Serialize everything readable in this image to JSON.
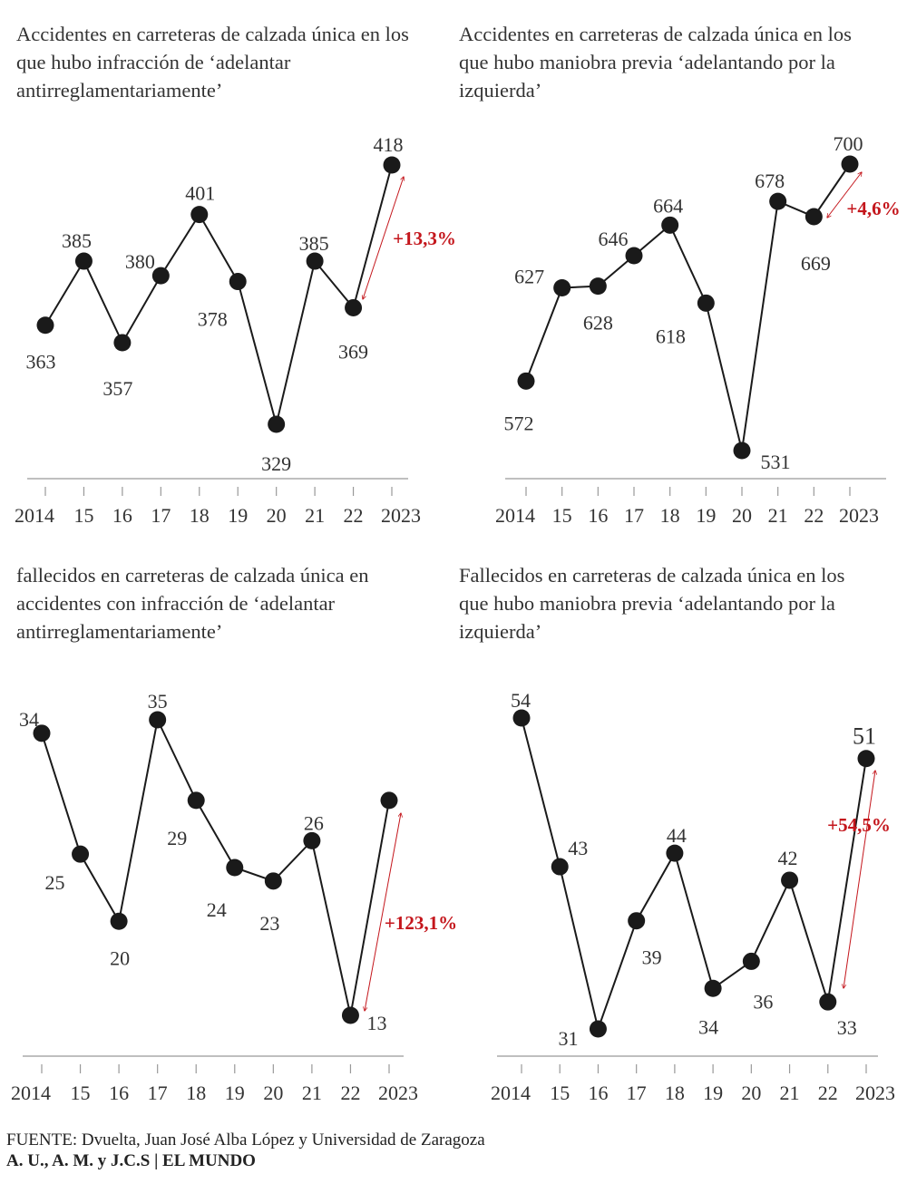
{
  "chart_data": [
    {
      "type": "line",
      "title": "Accidentes en carreteras de calzada única en los que hubo infracción de ‘adelantar antirreglamentariamente’",
      "categories": [
        "2014",
        "15",
        "16",
        "17",
        "18",
        "19",
        "20",
        "21",
        "22",
        "2023"
      ],
      "values": [
        363,
        385,
        357,
        380,
        401,
        378,
        329,
        385,
        369,
        418
      ],
      "labels": [
        "363",
        "385",
        "357",
        "380",
        "401",
        "378",
        "329",
        "385",
        "369",
        "418"
      ],
      "annotation": "+13,3%",
      "ylim": [
        329,
        418
      ]
    },
    {
      "type": "line",
      "title": "Accidentes en carreteras de calzada única en los que hubo maniobra previa ‘adelantando por la izquierda’",
      "categories": [
        "2014",
        "15",
        "16",
        "17",
        "18",
        "19",
        "20",
        "21",
        "22",
        "2023"
      ],
      "values": [
        572,
        627,
        628,
        646,
        664,
        618,
        531,
        678,
        669,
        700
      ],
      "labels": [
        "572",
        "627",
        "628",
        "646",
        "664",
        "618",
        "531",
        "678",
        "669",
        "700"
      ],
      "annotation": "+4,6%",
      "ylim": [
        531,
        700
      ]
    },
    {
      "type": "line",
      "title": "fallecidos en carreteras de calzada única en accidentes con infracción de ‘adelantar antirreglamentariamente’",
      "categories": [
        "2014",
        "15",
        "16",
        "17",
        "18",
        "19",
        "20",
        "21",
        "22",
        "2023"
      ],
      "values": [
        34,
        25,
        20,
        35,
        29,
        24,
        23,
        26,
        13,
        29
      ],
      "labels": [
        "34",
        "25",
        "20",
        "35",
        "29",
        "24",
        "23",
        "26",
        "13",
        null
      ],
      "annotation": "+123,1%",
      "ylim": [
        13,
        35
      ]
    },
    {
      "type": "line",
      "title": "Fallecidos en carreteras de calzada única en los que hubo maniobra previa ‘adelantando por la izquierda’",
      "categories": [
        "2014",
        "15",
        "16",
        "17",
        "18",
        "19",
        "20",
        "21",
        "22",
        "2023"
      ],
      "values": [
        54,
        43,
        31,
        39,
        44,
        34,
        36,
        42,
        33,
        51
      ],
      "labels": [
        "54",
        "43",
        "31",
        "39",
        "44",
        "34",
        "36",
        "42",
        "33",
        "51"
      ],
      "annotation": "+54,5%",
      "ylim": [
        31,
        54
      ]
    }
  ],
  "colors": {
    "line": "#1a1a1a",
    "accent": "#c4161c",
    "axis": "#999999"
  },
  "footer": {
    "source_label": "FUENTE:",
    "source": "Dvuelta, Juan José Alba López y Universidad de Zaragoza",
    "credits": "A. U., A. M. y J.C.S | EL MUNDO"
  }
}
